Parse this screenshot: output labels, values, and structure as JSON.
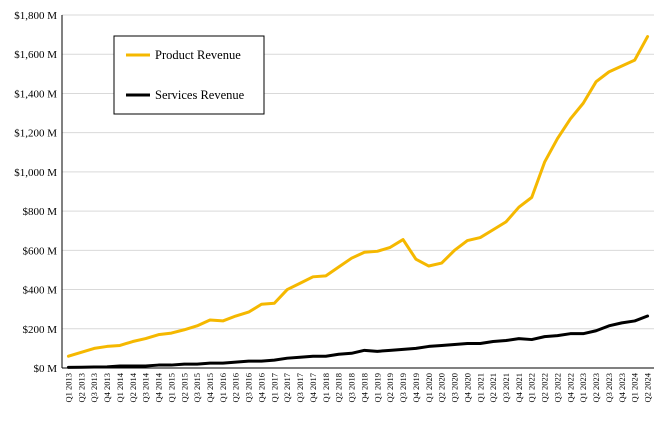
{
  "chart_data": {
    "type": "line",
    "title": "",
    "xlabel": "",
    "ylabel": "",
    "ylim": [
      0,
      1800
    ],
    "yticks": [
      0,
      200,
      400,
      600,
      800,
      1000,
      1200,
      1400,
      1600,
      1800
    ],
    "ytick_labels": [
      "$0 M",
      "$200 M",
      "$400 M",
      "$600 M",
      "$800 M",
      "$1,000 M",
      "$1,200 M",
      "$1,400 M",
      "$1,600 M",
      "$1,800 M"
    ],
    "grid": "horizontal",
    "legend": "top-left inside, boxed",
    "categories": [
      "Q1 2013",
      "Q2 2013",
      "Q3 2013",
      "Q4 2013",
      "Q1 2014",
      "Q2 2014",
      "Q3 2014",
      "Q4 2014",
      "Q1 2015",
      "Q2 2015",
      "Q3 2015",
      "Q4 2015",
      "Q1 2016",
      "Q2 2016",
      "Q3 2016",
      "Q4 2016",
      "Q1 2017",
      "Q2 2017",
      "Q3 2017",
      "Q4 2017",
      "Q1 2018",
      "Q2 2018",
      "Q3 2018",
      "Q4 2018",
      "Q1 2019",
      "Q2 2019",
      "Q3 2019",
      "Q4 2019",
      "Q1 2020",
      "Q2 2020",
      "Q3 2020",
      "Q4 2020",
      "Q1 2021",
      "Q2 2021",
      "Q3 2021",
      "Q4 2021",
      "Q1 2022",
      "Q2 2022",
      "Q3 2022",
      "Q4 2022",
      "Q1 2023",
      "Q2 2023",
      "Q3 2023",
      "Q4 2023",
      "Q1 2024",
      "Q2 2024"
    ],
    "series": [
      {
        "name": "Product Revenue",
        "color": "#F5B800",
        "values": [
          60,
          80,
          100,
          110,
          115,
          135,
          150,
          170,
          178,
          195,
          215,
          245,
          240,
          265,
          285,
          325,
          330,
          400,
          432,
          465,
          470,
          515,
          560,
          590,
          595,
          615,
          655,
          555,
          520,
          535,
          600,
          650,
          665,
          705,
          745,
          820,
          870,
          1050,
          1170,
          1270,
          1350,
          1460,
          1510,
          1540,
          1570,
          1690
        ]
      },
      {
        "name": "Services Revenue",
        "color": "#000000",
        "values": [
          3,
          4,
          5,
          6,
          10,
          10,
          10,
          15,
          15,
          20,
          20,
          25,
          25,
          30,
          35,
          35,
          40,
          50,
          55,
          60,
          60,
          70,
          75,
          90,
          85,
          90,
          95,
          100,
          110,
          115,
          120,
          125,
          125,
          135,
          140,
          150,
          145,
          160,
          165,
          175,
          175,
          190,
          215,
          230,
          240,
          265
        ]
      }
    ]
  }
}
